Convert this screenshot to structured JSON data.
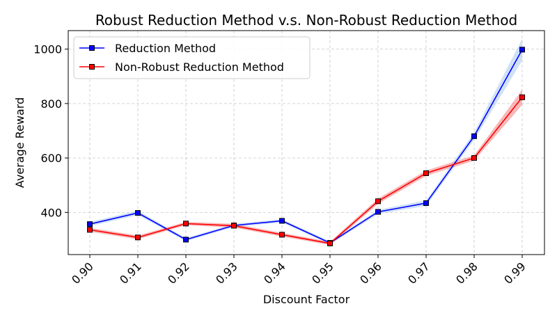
{
  "chart_data": {
    "type": "line",
    "title": "Robust Reduction Method v.s. Non-Robust Reduction Method",
    "xlabel": "Discount Factor",
    "ylabel": "Average Reward",
    "x": [
      "0.90",
      "0.91",
      "0.92",
      "0.93",
      "0.94",
      "0.95",
      "0.96",
      "0.97",
      "0.98",
      "0.99"
    ],
    "yticks": [
      "400",
      "600",
      "800",
      "1000"
    ],
    "ylim": [
      245,
      1068
    ],
    "grid": true,
    "legend_position": "top-left",
    "series": [
      {
        "name": "Reduction Method",
        "color": "#0000ff",
        "band_color": "#a8c8f0",
        "values": [
          357,
          398,
          300,
          352,
          369,
          288,
          402,
          434,
          680,
          998
        ],
        "band": [
          8,
          8,
          6,
          6,
          6,
          6,
          8,
          10,
          14,
          40
        ]
      },
      {
        "name": "Non-Robust Reduction Method",
        "color": "#ff0000",
        "band_color": "#f08080",
        "values": [
          336,
          308,
          359,
          351,
          318,
          286,
          441,
          544,
          600,
          823
        ],
        "band": [
          7,
          7,
          6,
          7,
          7,
          6,
          10,
          10,
          10,
          28
        ]
      }
    ]
  }
}
